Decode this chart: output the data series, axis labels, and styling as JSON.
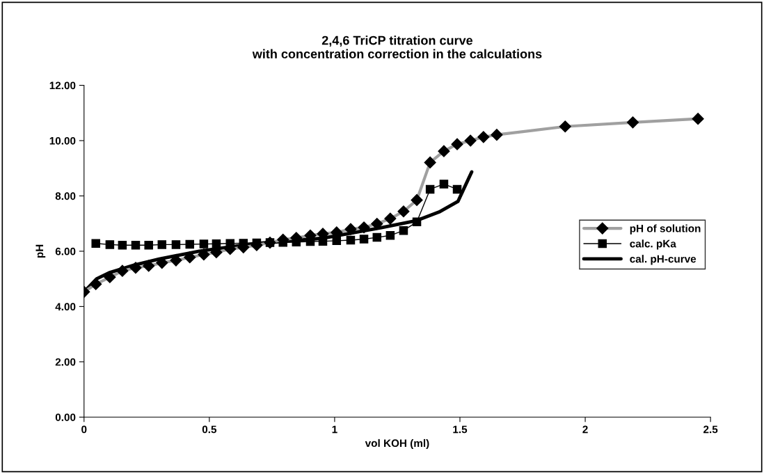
{
  "chart_data": {
    "type": "line",
    "title": "2,4,6 TriCP titration curve\nwith concentration correction in the calculations",
    "xlabel": "vol KOH (ml)",
    "ylabel": "pH",
    "xlim": [
      0,
      2.5
    ],
    "xticks": [
      0,
      0.5,
      1,
      1.5,
      2,
      2.5
    ],
    "ylim": [
      0,
      12
    ],
    "yticks": [
      {
        "value": 0,
        "label": "0.00"
      },
      {
        "value": 2,
        "label": "2.00"
      },
      {
        "value": 4,
        "label": "4.00"
      },
      {
        "value": 6,
        "label": "6.00"
      },
      {
        "value": 8,
        "label": "8.00"
      },
      {
        "value": 10,
        "label": "10.00"
      },
      {
        "value": 12,
        "label": "12.00"
      }
    ],
    "grid": false,
    "legend": "right",
    "series": [
      {
        "name": "pH of solution",
        "color": "#a0a0a0",
        "marker": "diamond",
        "line_style": "solid",
        "x": [
          0,
          0.047,
          0.103,
          0.153,
          0.206,
          0.258,
          0.311,
          0.367,
          0.422,
          0.478,
          0.528,
          0.583,
          0.636,
          0.689,
          0.742,
          0.794,
          0.847,
          0.903,
          0.953,
          1.008,
          1.064,
          1.117,
          1.169,
          1.222,
          1.275,
          1.328,
          1.381,
          1.436,
          1.489,
          1.542,
          1.594,
          1.647,
          1.92,
          2.19,
          2.45
        ],
        "values": [
          4.53,
          4.81,
          5.06,
          5.29,
          5.4,
          5.47,
          5.58,
          5.67,
          5.78,
          5.88,
          5.96,
          6.08,
          6.14,
          6.22,
          6.31,
          6.42,
          6.48,
          6.57,
          6.63,
          6.68,
          6.8,
          6.86,
          6.99,
          7.18,
          7.44,
          7.85,
          9.21,
          9.62,
          9.87,
          10.0,
          10.13,
          10.21,
          10.51,
          10.66,
          10.79
        ]
      },
      {
        "name": "calc. pKa",
        "color": "#000000",
        "marker": "square",
        "line_style": "solid",
        "x": [
          0.047,
          0.103,
          0.153,
          0.206,
          0.258,
          0.311,
          0.367,
          0.422,
          0.478,
          0.528,
          0.583,
          0.636,
          0.689,
          0.742,
          0.794,
          0.847,
          0.903,
          0.953,
          1.008,
          1.064,
          1.117,
          1.169,
          1.222,
          1.275,
          1.328,
          1.381,
          1.436,
          1.489
        ],
        "values": [
          6.28,
          6.24,
          6.22,
          6.22,
          6.22,
          6.24,
          6.24,
          6.25,
          6.26,
          6.27,
          6.28,
          6.29,
          6.3,
          6.31,
          6.32,
          6.33,
          6.35,
          6.36,
          6.38,
          6.4,
          6.44,
          6.5,
          6.57,
          6.75,
          7.06,
          8.24,
          8.43,
          8.24
        ]
      },
      {
        "name": "cal. pH-curve",
        "color": "#000000",
        "marker": "none",
        "line_style": "solid",
        "x": [
          0,
          0.05,
          0.1,
          0.2,
          0.3,
          0.46,
          0.675,
          0.953,
          1.0,
          1.186,
          1.328,
          1.417,
          1.492,
          1.547
        ],
        "values": [
          4.53,
          5.0,
          5.22,
          5.5,
          5.72,
          6.0,
          6.27,
          6.47,
          6.55,
          6.85,
          7.11,
          7.42,
          7.8,
          8.87
        ]
      }
    ]
  }
}
